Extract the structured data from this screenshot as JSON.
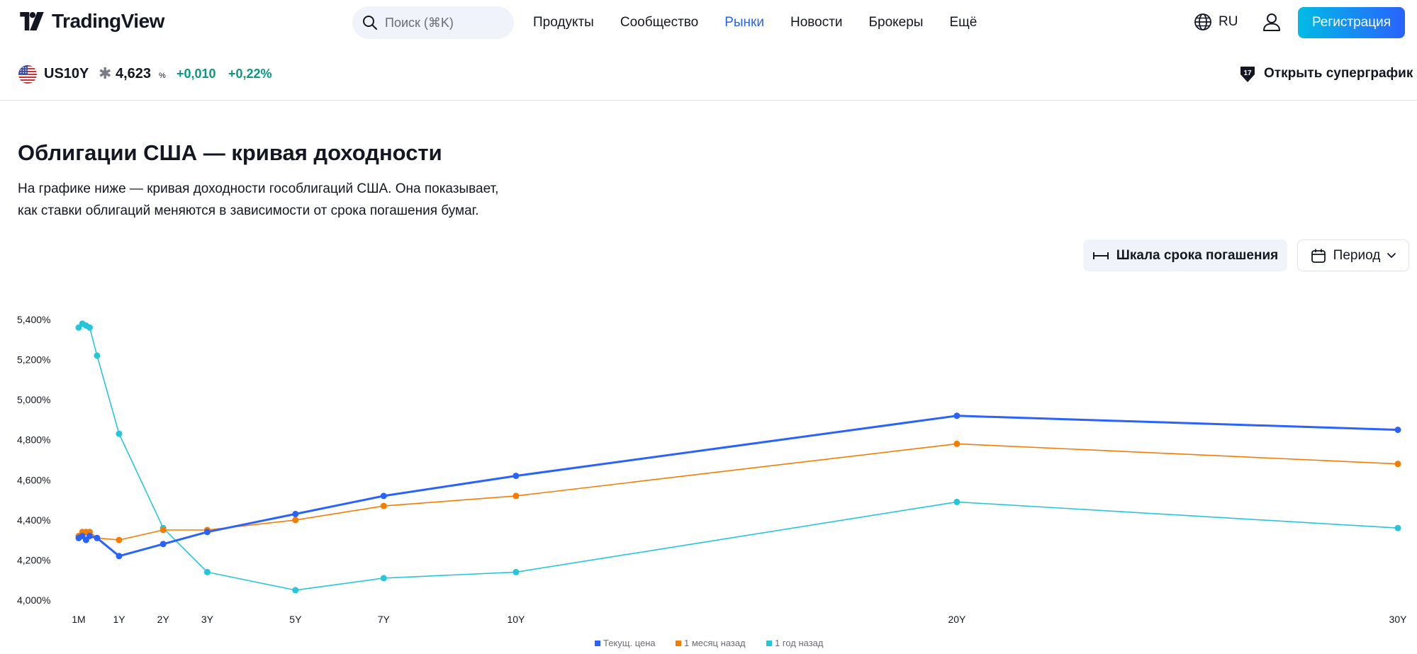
{
  "header": {
    "logo_text": "TradingView",
    "search_placeholder": "Поиск (⌘K)",
    "nav": [
      "Продукты",
      "Сообщество",
      "Рынки",
      "Новости",
      "Брокеры",
      "Ещё"
    ],
    "active_nav": "Рынки",
    "lang": "RU",
    "register_label": "Регистрация",
    "register_gradient": [
      "#00bce5",
      "#2962ff"
    ]
  },
  "ticker": {
    "symbol": "US10Y",
    "star": "✱",
    "price": "4,623",
    "unit": "%",
    "change": "+0,010",
    "change_pct": "+0,22%",
    "change_color": "#089981",
    "supergraph_label": "Открыть суперграфик"
  },
  "content": {
    "title": "Облигации США — кривая доходности",
    "description_line1": "На графике ниже — кривая доходности гособлигаций США. Она показывает,",
    "description_line2": "как ставки облигаций меняются в зависимости от срока погашения бумаг.",
    "scale_button": "Шкала срока погашения",
    "period_button": "Период"
  },
  "chart_data": {
    "type": "line",
    "x_unit": "years to maturity",
    "x_ticks": [
      {
        "label": "1M",
        "value": 0.0833
      },
      {
        "label": "1Y",
        "value": 1
      },
      {
        "label": "2Y",
        "value": 2
      },
      {
        "label": "3Y",
        "value": 3
      },
      {
        "label": "5Y",
        "value": 5
      },
      {
        "label": "7Y",
        "value": 7
      },
      {
        "label": "10Y",
        "value": 10
      },
      {
        "label": "20Y",
        "value": 20
      },
      {
        "label": "30Y",
        "value": 30
      }
    ],
    "y_ticks": [
      "5,400%",
      "5,200%",
      "5,000%",
      "4,800%",
      "4,600%",
      "4,400%",
      "4,200%",
      "4,000%"
    ],
    "ylim": [
      4.0,
      5.4
    ],
    "maturities": [
      0.0833,
      0.1667,
      0.25,
      0.333,
      0.5,
      1,
      2,
      3,
      5,
      7,
      10,
      20,
      30
    ],
    "series": [
      {
        "name": "Текущ. цена",
        "color": "#2962ff",
        "values": [
          4.31,
          4.32,
          4.3,
          4.32,
          4.31,
          4.22,
          4.28,
          4.34,
          4.43,
          4.52,
          4.62,
          4.92,
          4.85
        ]
      },
      {
        "name": "1 месяц назад",
        "color": "#f57c00",
        "values": [
          4.32,
          4.34,
          4.34,
          4.34,
          4.31,
          4.3,
          4.35,
          4.35,
          4.4,
          4.47,
          4.52,
          4.78,
          4.68
        ]
      },
      {
        "name": "1 год назад",
        "color": "#26c6da",
        "values": [
          5.36,
          5.38,
          5.37,
          5.36,
          5.22,
          4.83,
          4.36,
          4.14,
          4.05,
          4.11,
          4.14,
          4.49,
          4.36
        ]
      }
    ],
    "legend_position": "bottom-center",
    "grid": false
  }
}
